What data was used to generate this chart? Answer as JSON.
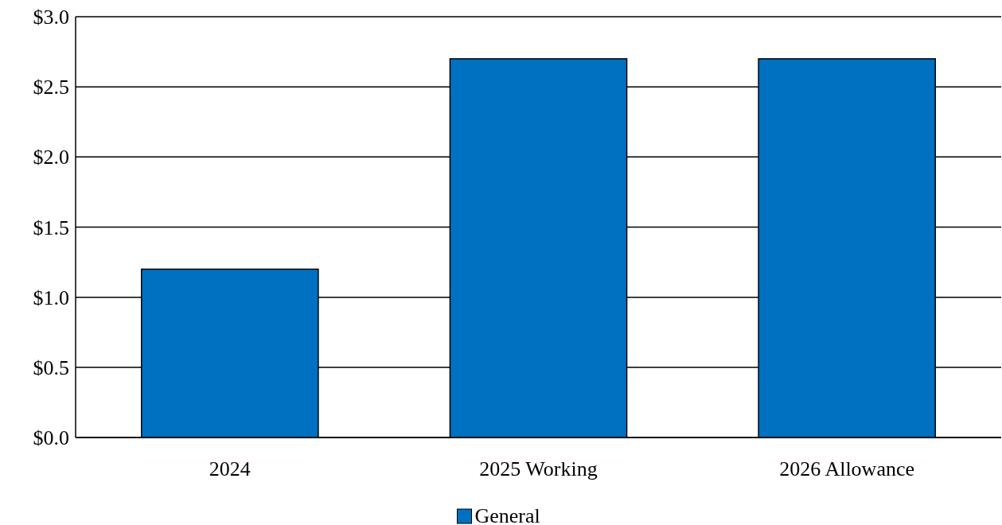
{
  "chart_data": {
    "type": "bar",
    "categories": [
      "2024",
      "2025 Working",
      "2026 Allowance"
    ],
    "series": [
      {
        "name": "General",
        "color": "#0070c0",
        "values": [
          1.2,
          2.7,
          2.7
        ]
      }
    ],
    "ylim": [
      0,
      3
    ],
    "yticks": [
      {
        "value": 0,
        "label": "$0.0"
      },
      {
        "value": 0.5,
        "label": "$0.5"
      },
      {
        "value": 1,
        "label": "$1.0"
      },
      {
        "value": 1.5,
        "label": "$1.5"
      },
      {
        "value": 2,
        "label": "$2.0"
      },
      {
        "value": 2.5,
        "label": "$2.5"
      },
      {
        "value": 3,
        "label": "$3.0"
      }
    ],
    "grid": "y",
    "legend": "bottom"
  }
}
